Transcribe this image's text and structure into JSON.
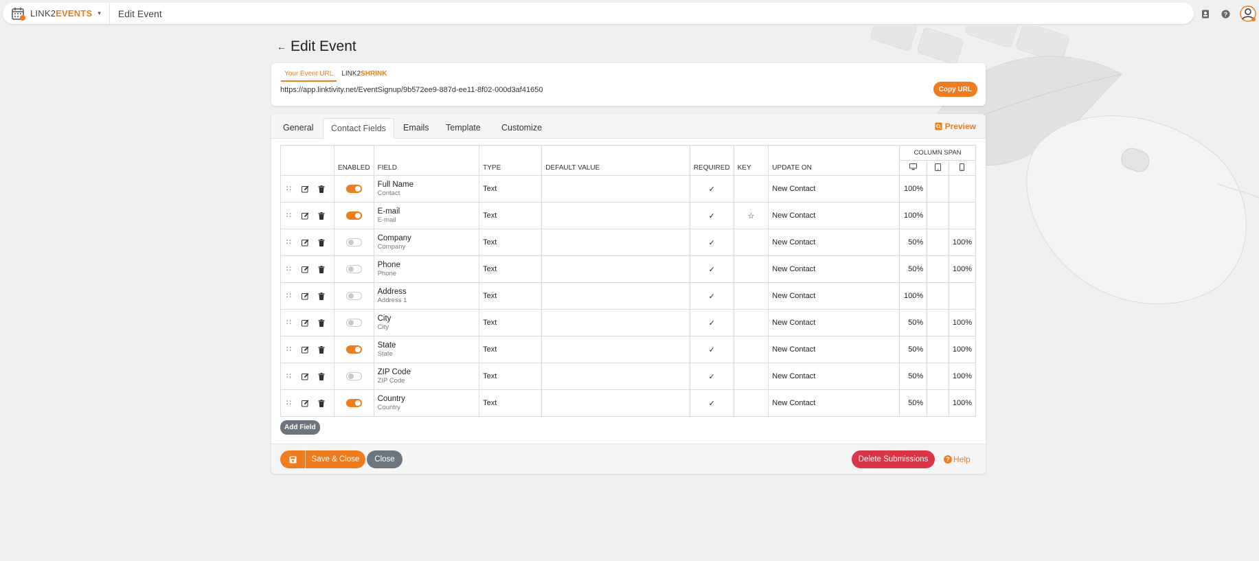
{
  "topbar": {
    "brand_prefix": "LINK2",
    "brand_suffix": "EVENTS",
    "caret": "▾",
    "page_title": "Edit Event",
    "icons": [
      "contacts-icon",
      "help-icon",
      "user-avatar-icon"
    ]
  },
  "page": {
    "back": "←",
    "title": "Edit Event"
  },
  "url_card": {
    "tab_event_url": "Your Event URL",
    "tab_shrink_prefix": "LINK2",
    "tab_shrink_suffix": "SHRINK",
    "url": "https://app.linktivity.net/EventSignup/9b572ee9-887d-ee11-8f02-000d3af41650",
    "copy_label": "Copy URL"
  },
  "tabs": [
    "General",
    "Contact Fields",
    "Emails",
    "Template",
    "Customize"
  ],
  "active_tab": "Contact Fields",
  "preview_label": "Preview",
  "table": {
    "headers": {
      "enabled": "ENABLED",
      "field": "FIELD",
      "type": "TYPE",
      "default_value": "DEFAULT VALUE",
      "required": "REQUIRED",
      "key": "KEY",
      "update_on": "UPDATE ON",
      "column_span": "COLUMN SPAN"
    },
    "rows": [
      {
        "name": "Full Name",
        "sub": "Contact",
        "enabled": true,
        "type": "Text",
        "default": "",
        "required": "✓",
        "key": "",
        "update_on": "New Contact",
        "desktop": "100%",
        "tablet": "",
        "mobile": ""
      },
      {
        "name": "E-mail",
        "sub": "E-mail",
        "enabled": true,
        "type": "Text",
        "default": "",
        "required": "✓",
        "key": "☆",
        "update_on": "New Contact",
        "desktop": "100%",
        "tablet": "",
        "mobile": ""
      },
      {
        "name": "Company",
        "sub": "Company",
        "enabled": false,
        "type": "Text",
        "default": "",
        "required": "✓",
        "key": "",
        "update_on": "New Contact",
        "desktop": "50%",
        "tablet": "",
        "mobile": "100%"
      },
      {
        "name": "Phone",
        "sub": "Phone",
        "enabled": false,
        "type": "Text",
        "default": "",
        "required": "✓",
        "key": "",
        "update_on": "New Contact",
        "desktop": "50%",
        "tablet": "",
        "mobile": "100%"
      },
      {
        "name": "Address",
        "sub": "Address 1",
        "enabled": false,
        "type": "Text",
        "default": "",
        "required": "✓",
        "key": "",
        "update_on": "New Contact",
        "desktop": "100%",
        "tablet": "",
        "mobile": ""
      },
      {
        "name": "City",
        "sub": "City",
        "enabled": false,
        "type": "Text",
        "default": "",
        "required": "✓",
        "key": "",
        "update_on": "New Contact",
        "desktop": "50%",
        "tablet": "",
        "mobile": "100%"
      },
      {
        "name": "State",
        "sub": "State",
        "enabled": true,
        "type": "Text",
        "default": "",
        "required": "✓",
        "key": "",
        "update_on": "New Contact",
        "desktop": "50%",
        "tablet": "",
        "mobile": "100%"
      },
      {
        "name": "ZIP Code",
        "sub": "ZIP Code",
        "enabled": false,
        "type": "Text",
        "default": "",
        "required": "✓",
        "key": "",
        "update_on": "New Contact",
        "desktop": "50%",
        "tablet": "",
        "mobile": "100%"
      },
      {
        "name": "Country",
        "sub": "Country",
        "enabled": true,
        "type": "Text",
        "default": "",
        "required": "✓",
        "key": "",
        "update_on": "New Contact",
        "desktop": "50%",
        "tablet": "",
        "mobile": "100%"
      }
    ]
  },
  "add_field_label": "Add Field",
  "footer": {
    "save_close_label": "Save & Close",
    "close_label": "Close",
    "delete_label": "Delete Submissions",
    "help_label": "Help",
    "help_mark": "?"
  },
  "colors": {
    "accent": "#f07c1b",
    "danger": "#dc3545",
    "secondary": "#6c757d",
    "background": "#efefef"
  }
}
